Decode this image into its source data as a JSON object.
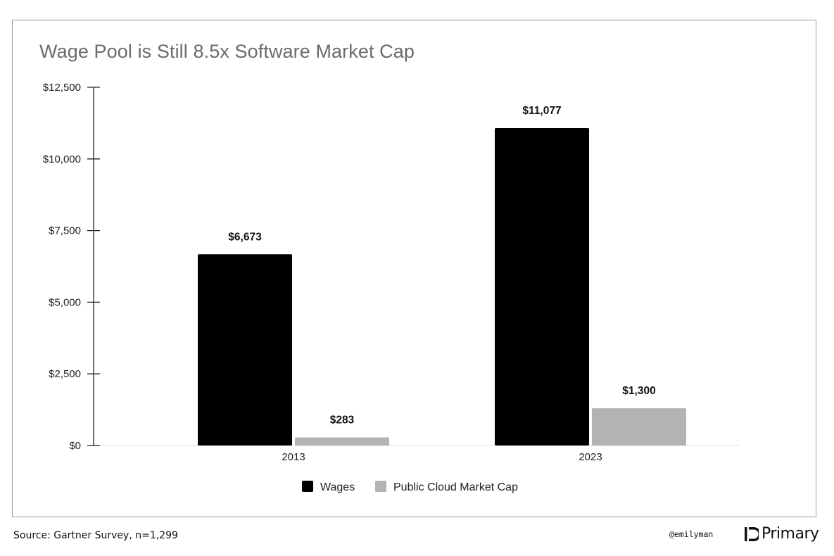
{
  "chart_data": {
    "type": "bar",
    "title": "Wage Pool is Still 8.5x Software Market Cap",
    "categories": [
      "2013",
      "2023"
    ],
    "series": [
      {
        "name": "Wages",
        "color": "#000000",
        "values": [
          6673,
          11077
        ],
        "labels": [
          "$6,673",
          "$11,077"
        ]
      },
      {
        "name": "Public Cloud Market Cap",
        "color": "#b3b3b3",
        "values": [
          283,
          1300
        ],
        "labels": [
          "$283",
          "$1,300"
        ]
      }
    ],
    "ylim": [
      0,
      12500
    ],
    "yticks": [
      0,
      2500,
      5000,
      7500,
      10000,
      12500
    ],
    "ytick_labels": [
      "$0",
      "$2,500",
      "$5,000",
      "$7,500",
      "$10,000",
      "$12,500"
    ],
    "xlabel": "",
    "ylabel": "",
    "legend_position": "bottom-center",
    "grid": false
  },
  "footer": {
    "source": "Source: Gartner Survey, n=1,299",
    "handle": "@emilyman",
    "brand": "Primary"
  }
}
